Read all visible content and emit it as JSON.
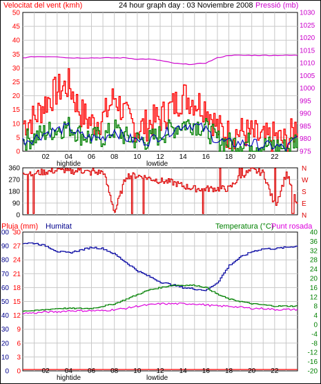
{
  "header": {
    "wind_label": "Velocitat del vent (kmh)",
    "graph_title": "24 hour graph day : 03 Noviembre 2008",
    "pressure_label": "Pressió (mb)"
  },
  "lower_header": {
    "rain_label": "Pluja (mm)",
    "humidity_label": "Humitat",
    "temperature_label": "Temperatura (°C)",
    "dewpoint_label": "Punt rosada"
  },
  "hour_ticks": [
    "02",
    "04",
    "06",
    "08",
    "10",
    "12",
    "14",
    "16",
    "18",
    "20",
    "22"
  ],
  "tide_labels": {
    "high": "hightide",
    "low": "lowtide"
  },
  "wind_ticks": [
    "0",
    "5",
    "10",
    "15",
    "20",
    "25",
    "30",
    "35",
    "40",
    "45",
    "50"
  ],
  "pressure_ticks": [
    "975",
    "980",
    "985",
    "990",
    "995",
    "1000",
    "1005",
    "1010",
    "1015",
    "1020",
    "1025",
    "1030"
  ],
  "direction_ticks": [
    "0",
    "90",
    "180",
    "270",
    "360"
  ],
  "direction_letters": [
    "N",
    "W",
    "S",
    "E",
    "N"
  ],
  "humidity_ticks": [
    "0",
    "10",
    "20",
    "30",
    "40",
    "50",
    "60",
    "70",
    "80",
    "90",
    "100"
  ],
  "rain_ticks": [
    "0",
    "3",
    "6",
    "9",
    "12",
    "15",
    "18",
    "21",
    "24",
    "27",
    "30"
  ],
  "temp_ticks": [
    "-20",
    "-16",
    "-12",
    "-8",
    "-4",
    "0",
    "4",
    "8",
    "12",
    "16",
    "20",
    "24",
    "28",
    "32",
    "36",
    "40"
  ],
  "colors": {
    "wind_gust": "#ff0000",
    "wind_avg": "#008000",
    "wind_dir_line": "#0000c0",
    "pressure": "#cc00cc",
    "direction": "#dd0000",
    "humidity": "#0000a0",
    "temperature": "#008000",
    "dewpoint": "#dd00dd",
    "rain": "#ff0000",
    "grid": "#c8c8c8",
    "frame": "#000000"
  },
  "chart_data": [
    {
      "type": "line",
      "title": "24 hour graph day : 03 Noviembre 2008",
      "ylabel": "Velocitat del vent (kmh)",
      "ylabel_right": "Pressió (mb)",
      "x": [
        0,
        1,
        2,
        3,
        4,
        5,
        6,
        7,
        8,
        9,
        10,
        11,
        12,
        13,
        14,
        15,
        16,
        17,
        18,
        19,
        20,
        21,
        22,
        23,
        24
      ],
      "ylim": [
        0,
        50
      ],
      "ylim_right": [
        975,
        1030
      ],
      "series": [
        {
          "name": "Velocitat del vent (kmh)",
          "values": [
            10,
            12,
            18,
            22,
            24,
            14,
            10,
            12,
            20,
            12,
            8,
            10,
            12,
            16,
            20,
            18,
            16,
            8,
            6,
            7,
            6,
            4,
            5,
            3,
            10
          ]
        },
        {
          "values": [
            4,
            5,
            7,
            8,
            9,
            6,
            5,
            5,
            8,
            5,
            4,
            4,
            6,
            8,
            10,
            10,
            8,
            4,
            3,
            3,
            3,
            2,
            2,
            1,
            5
          ]
        },
        {
          "name": "Pressió (mb)",
          "values": [
            1012,
            1012.5,
            1012.5,
            1012.5,
            1012,
            1012,
            1012,
            1012,
            1012,
            1012,
            1011.5,
            1011.5,
            1011,
            1010,
            1009.5,
            1009.5,
            1010,
            1012,
            1013,
            1013,
            1013,
            1013,
            1013,
            1013,
            1013
          ]
        }
      ]
    },
    {
      "type": "line",
      "x": [
        0,
        1,
        2,
        3,
        4,
        5,
        6,
        7,
        8,
        9,
        10,
        11,
        12,
        13,
        14,
        15,
        16,
        17,
        18,
        19,
        20,
        21,
        22,
        23,
        24
      ],
      "ylim": [
        0,
        360
      ],
      "series": [
        {
          "values": [
            330,
            320,
            330,
            340,
            330,
            340,
            320,
            330,
            20,
            300,
            300,
            280,
            260,
            250,
            220,
            200,
            200,
            200,
            200,
            300,
            340,
            320,
            60,
            320,
            60
          ]
        }
      ]
    },
    {
      "type": "line",
      "ylabel": "Pluja (mm)",
      "ylabel_right": "Temperatura (°C)",
      "x": [
        0,
        1,
        2,
        3,
        4,
        5,
        6,
        7,
        8,
        9,
        10,
        11,
        12,
        13,
        14,
        15,
        16,
        17,
        18,
        19,
        20,
        21,
        22,
        23,
        24
      ],
      "ylim": [
        0,
        100
      ],
      "ylim_right": [
        -20,
        40
      ],
      "series": [
        {
          "name": "Humitat",
          "values": [
            92,
            92,
            90,
            86,
            85,
            87,
            89,
            88,
            84,
            78,
            72,
            68,
            64,
            62,
            60,
            59,
            58,
            64,
            76,
            82,
            86,
            88,
            88,
            89,
            90
          ]
        },
        {
          "name": "Temperatura (°C)",
          "values": [
            6,
            6,
            6.5,
            7,
            7,
            7,
            7,
            8,
            9,
            11,
            13,
            15,
            16,
            17,
            17,
            17,
            16,
            13,
            11,
            10,
            9,
            8.5,
            8,
            8,
            8
          ]
        },
        {
          "name": "Punt rosada",
          "values": [
            5,
            5,
            5.5,
            5.5,
            6,
            6,
            6,
            6,
            6.5,
            7,
            8,
            8.5,
            9,
            9,
            9,
            9,
            8.5,
            8,
            8,
            7.5,
            7,
            7,
            6.5,
            6.5,
            6.5
          ]
        },
        {
          "name": "Pluja (mm)",
          "values": [
            0,
            0,
            0,
            0,
            0,
            0,
            0,
            0,
            0,
            0,
            0,
            0,
            0,
            0,
            0,
            0,
            0,
            0,
            0,
            0,
            0,
            0,
            0,
            0,
            0
          ]
        }
      ]
    }
  ]
}
